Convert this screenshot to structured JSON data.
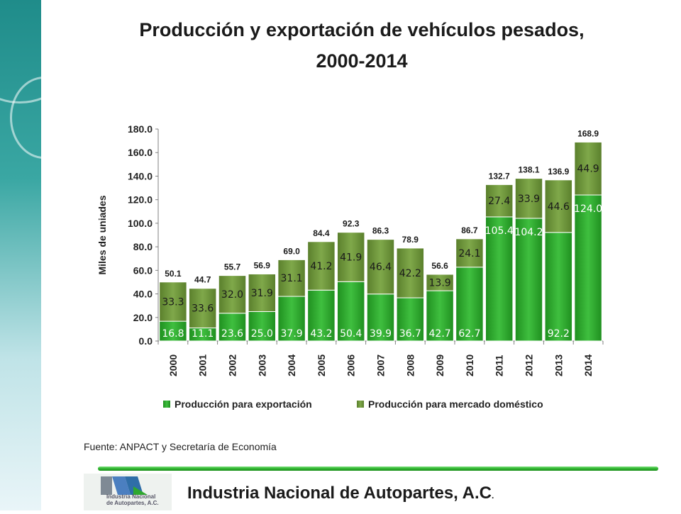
{
  "title_line1": "Producción y exportación de vehículos pesados,",
  "title_line2": "2000-2014",
  "source": "Fuente: ANPACT y Secretaría de Economía",
  "footer": "Industria Nacional de  Autopartes, A.C",
  "footer_suffix": ".",
  "logo_lines": [
    "Industria Nacional",
    "de Autopartes, A.C."
  ],
  "chart_data": {
    "type": "bar",
    "stacked": true,
    "categories": [
      "2000",
      "2001",
      "2002",
      "2003",
      "2004",
      "2005",
      "2006",
      "2007",
      "2008",
      "2009",
      "2010",
      "2011",
      "2012",
      "2013",
      "2014"
    ],
    "series": [
      {
        "name": "Producción para exportación",
        "color": "#2ea82e",
        "values": [
          16.8,
          11.1,
          23.6,
          25.0,
          37.9,
          43.2,
          50.4,
          39.9,
          36.7,
          42.7,
          62.7,
          105.4,
          104.2,
          92.2,
          124.0
        ]
      },
      {
        "name": "Producción para mercado doméstico",
        "color": "#6f9a3a",
        "values": [
          33.3,
          33.6,
          32.0,
          31.9,
          31.1,
          41.2,
          41.9,
          46.4,
          42.2,
          13.9,
          24.1,
          27.4,
          33.9,
          44.6,
          44.9
        ]
      }
    ],
    "totals": [
      50.1,
      44.7,
      55.7,
      56.9,
      69.0,
      84.4,
      92.3,
      86.3,
      78.9,
      56.6,
      86.7,
      132.7,
      138.1,
      136.9,
      168.9
    ],
    "ylabel": "Miles de uniades",
    "ylim": [
      0,
      180
    ],
    "yticks": [
      "0.0",
      "20.0",
      "40.0",
      "60.0",
      "80.0",
      "100.0",
      "120.0",
      "140.0",
      "160.0",
      "180.0"
    ],
    "legend_position": "bottom",
    "grid": false
  }
}
